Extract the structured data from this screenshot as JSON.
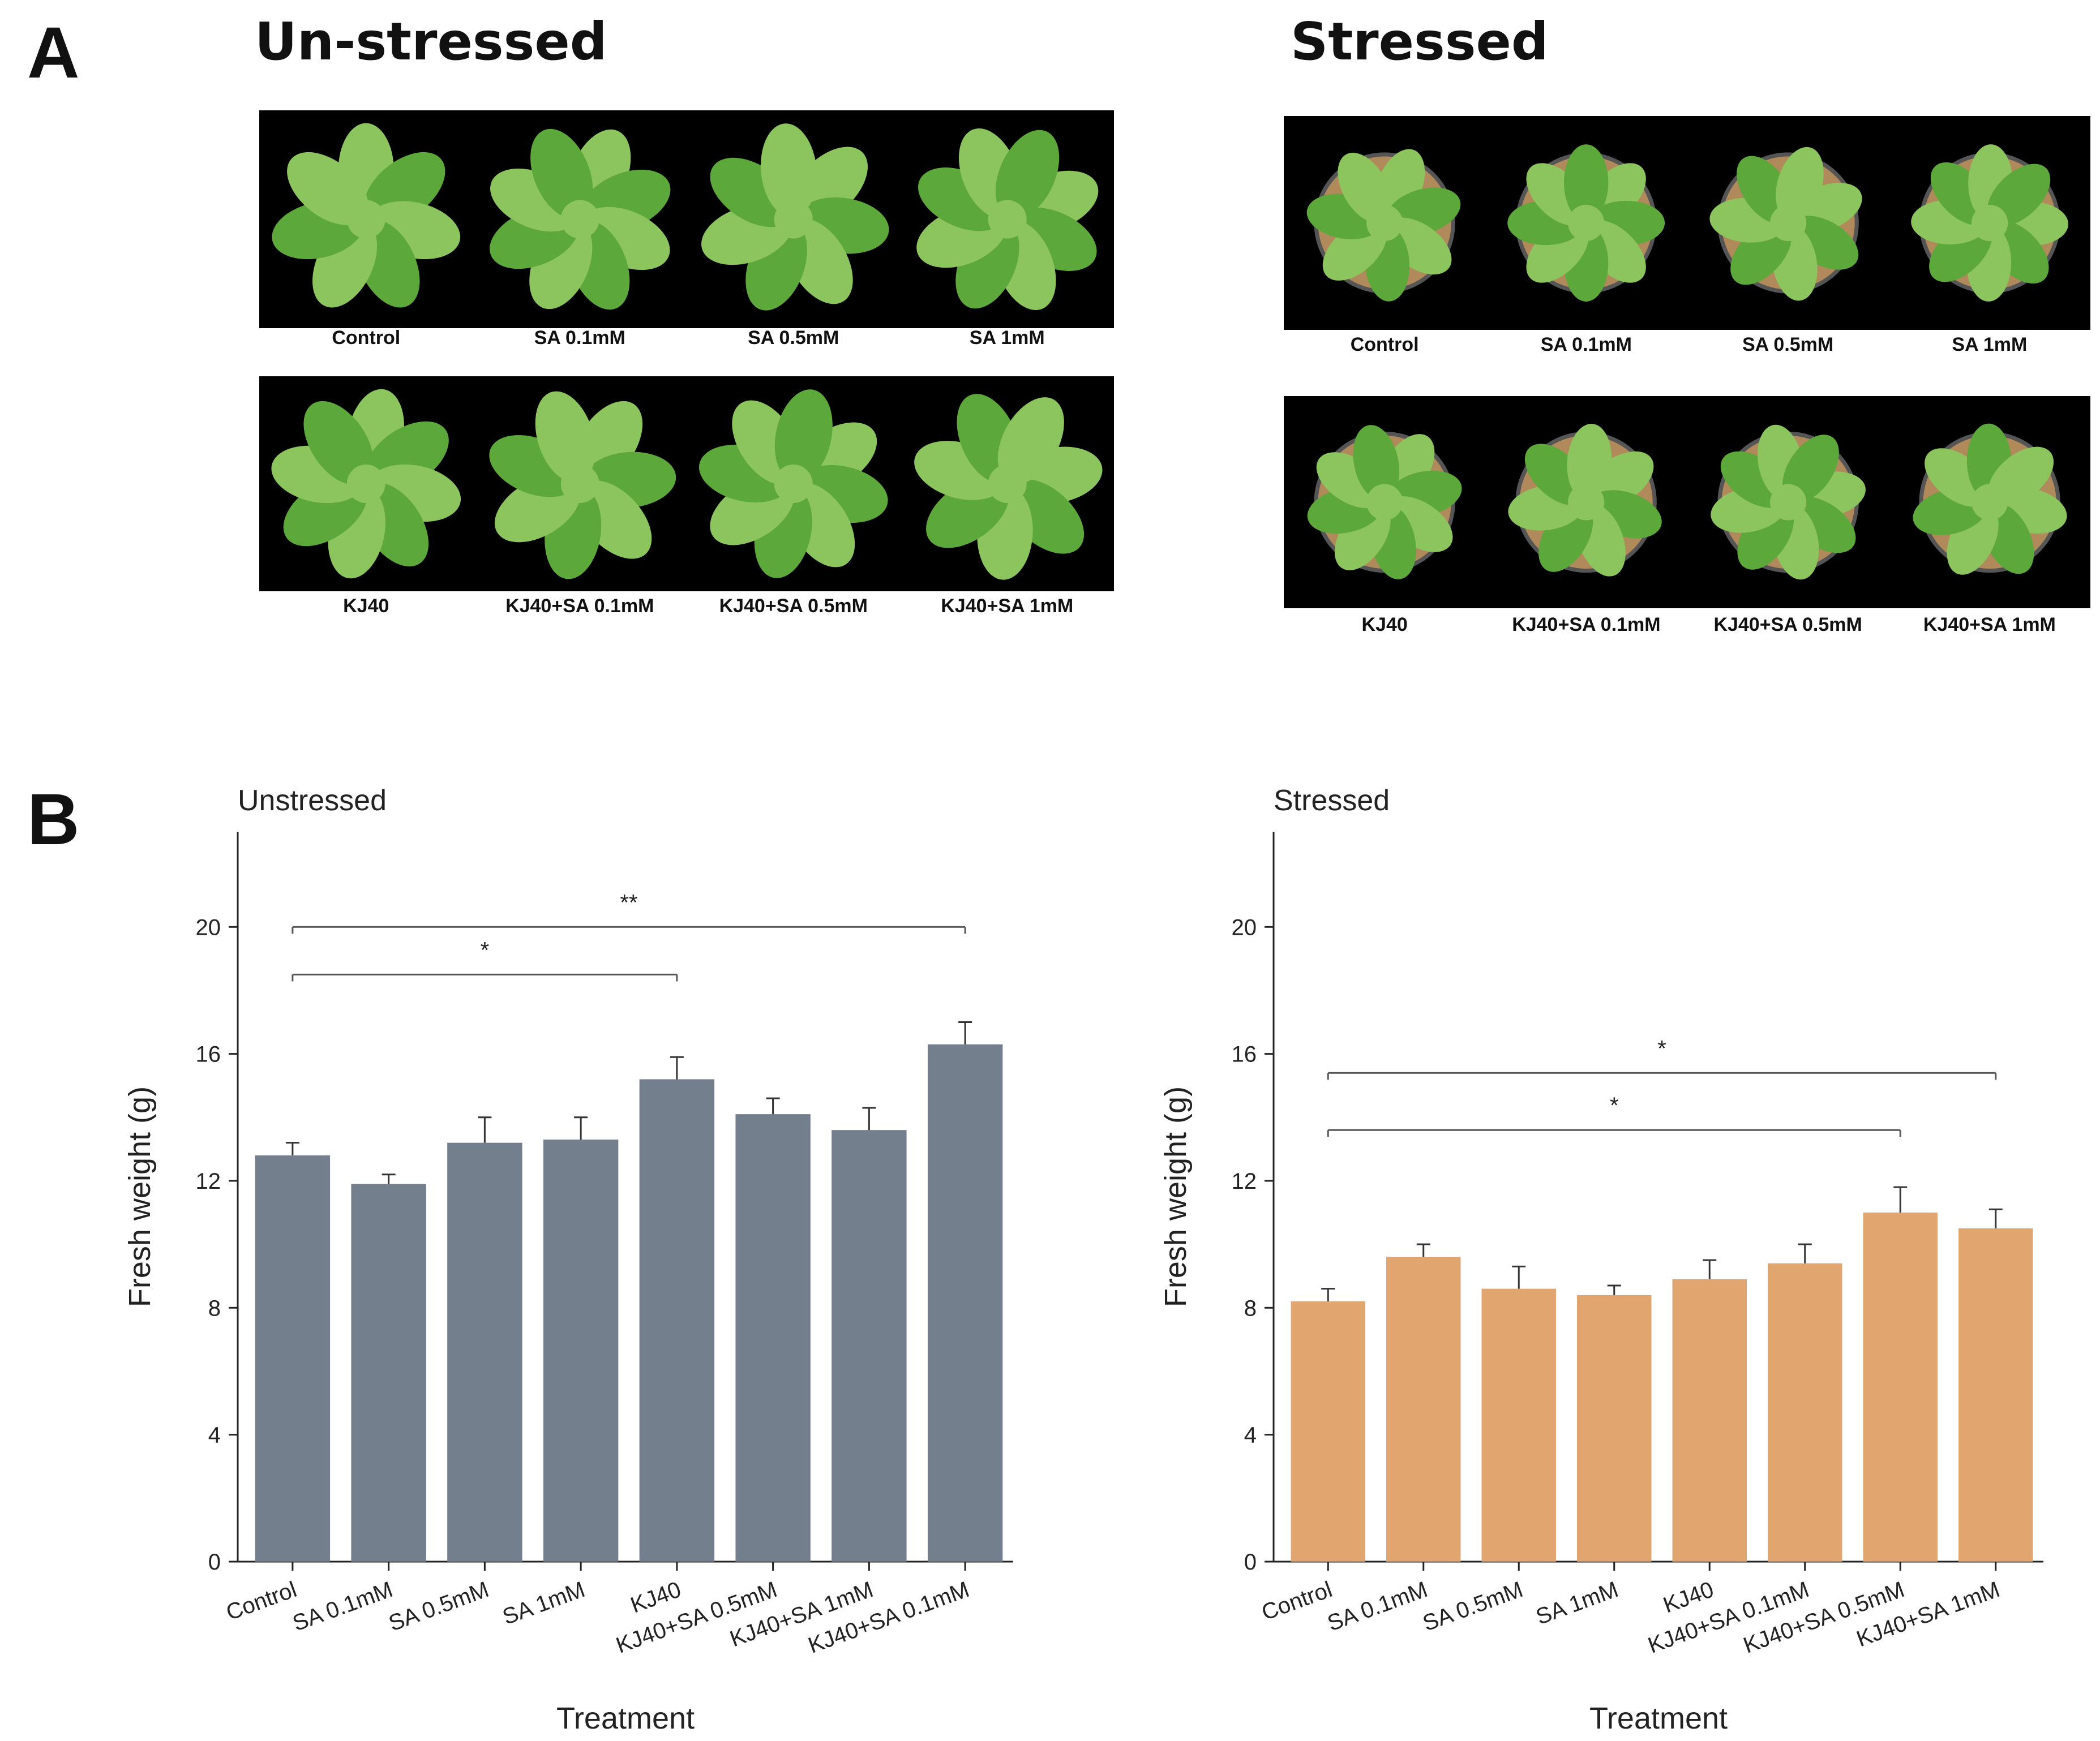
{
  "panel_a": {
    "letter": "A",
    "groups": [
      {
        "title": "Un-stressed",
        "rows": [
          {
            "labels": [
              "Control",
              "SA 0.1mM",
              "SA 0.5mM",
              "SA 1mM"
            ]
          },
          {
            "labels": [
              "KJ40",
              "KJ40+SA 0.1mM",
              "KJ40+SA 0.5mM",
              "KJ40+SA 1mM"
            ]
          }
        ]
      },
      {
        "title": "Stressed",
        "rows": [
          {
            "labels": [
              "Control",
              "SA 0.1mM",
              "SA 0.5mM",
              "SA 1mM"
            ]
          },
          {
            "labels": [
              "KJ40",
              "KJ40+SA 0.1mM",
              "KJ40+SA 0.5mM",
              "KJ40+SA 1mM"
            ]
          }
        ]
      }
    ],
    "colors": {
      "leaf": "#5da83a",
      "leaf_light": "#8cc55e",
      "background": "#000000",
      "soil": "#b08a5a"
    }
  },
  "panel_b": {
    "letter": "B"
  },
  "chart_data": [
    {
      "type": "bar",
      "title": "Unstressed",
      "xlabel": "Treatment",
      "ylabel": "Fresh weight (g)",
      "ylim": [
        0,
        23
      ],
      "yticks": [
        0,
        4,
        8,
        12,
        16,
        20
      ],
      "categories": [
        "Control",
        "SA 0.1mM",
        "SA 0.5mM",
        "SA 1mM",
        "KJ40",
        "KJ40+SA 0.5mM",
        "KJ40+SA 1mM",
        "KJ40+SA 0.1mM"
      ],
      "values": [
        12.8,
        11.9,
        13.2,
        13.3,
        15.2,
        14.1,
        13.6,
        16.3
      ],
      "errors": [
        0.4,
        0.3,
        0.8,
        0.7,
        0.7,
        0.5,
        0.7,
        0.7
      ],
      "color": "#737f8c",
      "significance": [
        {
          "from": 0,
          "to": 4,
          "label": "*",
          "y": 18.5
        },
        {
          "from": 0,
          "to": 7,
          "label": "**",
          "y": 20.0
        }
      ]
    },
    {
      "type": "bar",
      "title": "Stressed",
      "xlabel": "Treatment",
      "ylabel": "Fresh weight (g)",
      "ylim": [
        0,
        23
      ],
      "yticks": [
        0,
        4,
        8,
        12,
        16,
        20
      ],
      "categories": [
        "Control",
        "SA 0.1mM",
        "SA 0.5mM",
        "SA 1mM",
        "KJ40",
        "KJ40+SA 0.1mM",
        "KJ40+SA 0.5mM",
        "KJ40+SA 1mM"
      ],
      "values": [
        8.2,
        9.6,
        8.6,
        8.4,
        8.9,
        9.4,
        11.0,
        10.5
      ],
      "errors": [
        0.4,
        0.4,
        0.7,
        0.3,
        0.6,
        0.6,
        0.8,
        0.6
      ],
      "color": "#e1a570",
      "significance": [
        {
          "from": 0,
          "to": 6,
          "label": "*",
          "y": 13.6
        },
        {
          "from": 0,
          "to": 7,
          "label": "*",
          "y": 15.4
        }
      ]
    }
  ]
}
